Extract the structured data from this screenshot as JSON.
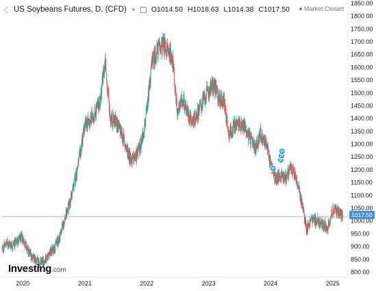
{
  "header": {
    "title": "US Soybeans Futures, D, (CFD)",
    "ohlc": [
      {
        "label": "O",
        "value": "1014.50"
      },
      {
        "label": "H",
        "value": "1018.63"
      },
      {
        "label": "L",
        "value": "1014.38"
      },
      {
        "label": "C",
        "value": "1017.50"
      }
    ],
    "market_status": "Market Closed"
  },
  "logo": {
    "main": "Investing",
    "suffix": ".com"
  },
  "price_tag": "1017.50",
  "colors": {
    "up": "#26a69a",
    "down": "#ef5350",
    "price_line": "#9fb3c8",
    "tag": "#4a90d9",
    "marker": "#2196f3"
  },
  "chart_data": {
    "type": "candlestick",
    "x_tick_labels": [
      "2020",
      "2021",
      "2022",
      "2023",
      "2024",
      "2025"
    ],
    "y_tick_labels": [
      "800.00",
      "850.00",
      "900.00",
      "950.00",
      "1000.00",
      "1050.00",
      "1100.00",
      "1150.00",
      "1200.00",
      "1250.00",
      "1300.00",
      "1350.00",
      "1400.00",
      "1450.00",
      "1500.00",
      "1550.00",
      "1600.00",
      "1650.00",
      "1700.00",
      "1750.00",
      "1800.00",
      "1850.00"
    ],
    "ylim": [
      780,
      1855
    ],
    "last_price": 1017.5,
    "markers": [
      {
        "label": "P",
        "date": "2024-01-15",
        "price": 1205
      },
      {
        "label": "P",
        "date": "2024-03-01",
        "price": 1238
      },
      {
        "label": "P",
        "date": "2024-03-05",
        "price": 1255
      },
      {
        "label": "P",
        "date": "2024-03-08",
        "price": 1272
      }
    ],
    "series": [
      {
        "date": "2019-09-01",
        "price": 890
      },
      {
        "date": "2019-10-01",
        "price": 915
      },
      {
        "date": "2019-11-01",
        "price": 905
      },
      {
        "date": "2019-12-01",
        "price": 925
      },
      {
        "date": "2020-01-01",
        "price": 935
      },
      {
        "date": "2020-02-01",
        "price": 880
      },
      {
        "date": "2020-03-01",
        "price": 860
      },
      {
        "date": "2020-04-01",
        "price": 835
      },
      {
        "date": "2020-05-01",
        "price": 840
      },
      {
        "date": "2020-06-01",
        "price": 870
      },
      {
        "date": "2020-07-01",
        "price": 890
      },
      {
        "date": "2020-08-01",
        "price": 930
      },
      {
        "date": "2020-09-01",
        "price": 1000
      },
      {
        "date": "2020-10-01",
        "price": 1060
      },
      {
        "date": "2020-11-01",
        "price": 1150
      },
      {
        "date": "2020-12-01",
        "price": 1250
      },
      {
        "date": "2021-01-01",
        "price": 1370
      },
      {
        "date": "2021-02-01",
        "price": 1390
      },
      {
        "date": "2021-03-01",
        "price": 1420
      },
      {
        "date": "2021-04-01",
        "price": 1470
      },
      {
        "date": "2021-05-01",
        "price": 1620
      },
      {
        "date": "2021-06-01",
        "price": 1400
      },
      {
        "date": "2021-07-01",
        "price": 1390
      },
      {
        "date": "2021-08-01",
        "price": 1350
      },
      {
        "date": "2021-09-01",
        "price": 1290
      },
      {
        "date": "2021-10-01",
        "price": 1240
      },
      {
        "date": "2021-11-01",
        "price": 1250
      },
      {
        "date": "2021-12-01",
        "price": 1310
      },
      {
        "date": "2022-01-01",
        "price": 1420
      },
      {
        "date": "2022-02-01",
        "price": 1620
      },
      {
        "date": "2022-03-01",
        "price": 1660
      },
      {
        "date": "2022-04-01",
        "price": 1690
      },
      {
        "date": "2022-05-01",
        "price": 1670
      },
      {
        "date": "2022-06-01",
        "price": 1640
      },
      {
        "date": "2022-07-01",
        "price": 1420
      },
      {
        "date": "2022-08-01",
        "price": 1480
      },
      {
        "date": "2022-09-01",
        "price": 1420
      },
      {
        "date": "2022-10-01",
        "price": 1390
      },
      {
        "date": "2022-11-01",
        "price": 1430
      },
      {
        "date": "2022-12-01",
        "price": 1470
      },
      {
        "date": "2023-01-01",
        "price": 1510
      },
      {
        "date": "2023-02-01",
        "price": 1530
      },
      {
        "date": "2023-03-01",
        "price": 1480
      },
      {
        "date": "2023-04-01",
        "price": 1470
      },
      {
        "date": "2023-05-01",
        "price": 1340
      },
      {
        "date": "2023-06-01",
        "price": 1370
      },
      {
        "date": "2023-07-01",
        "price": 1380
      },
      {
        "date": "2023-08-01",
        "price": 1370
      },
      {
        "date": "2023-09-01",
        "price": 1320
      },
      {
        "date": "2023-10-01",
        "price": 1280
      },
      {
        "date": "2023-11-01",
        "price": 1340
      },
      {
        "date": "2023-12-01",
        "price": 1310
      },
      {
        "date": "2024-01-01",
        "price": 1230
      },
      {
        "date": "2024-02-01",
        "price": 1160
      },
      {
        "date": "2024-03-01",
        "price": 1180
      },
      {
        "date": "2024-04-01",
        "price": 1170
      },
      {
        "date": "2024-05-01",
        "price": 1210
      },
      {
        "date": "2024-06-01",
        "price": 1160
      },
      {
        "date": "2024-07-01",
        "price": 1080
      },
      {
        "date": "2024-08-01",
        "price": 970
      },
      {
        "date": "2024-09-01",
        "price": 1010
      },
      {
        "date": "2024-10-01",
        "price": 1000
      },
      {
        "date": "2024-11-01",
        "price": 985
      },
      {
        "date": "2024-12-01",
        "price": 975
      },
      {
        "date": "2025-01-01",
        "price": 1040
      },
      {
        "date": "2025-02-01",
        "price": 1040
      },
      {
        "date": "2025-03-01",
        "price": 1017.5
      }
    ]
  }
}
